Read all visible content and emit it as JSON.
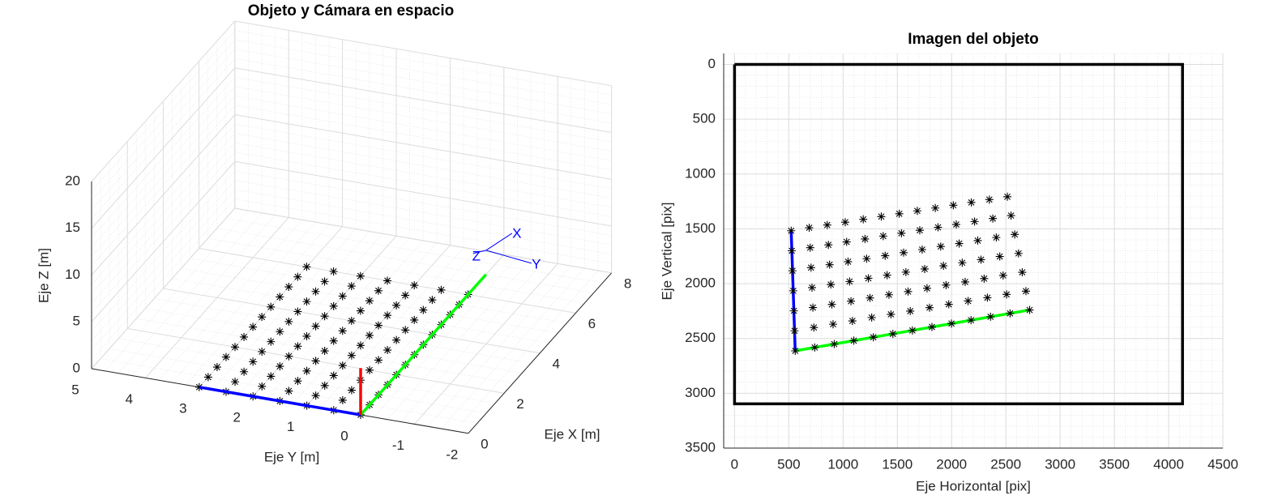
{
  "chart_data": [
    {
      "type": "scatter3d",
      "title": "Objeto y Cámara en espacio",
      "xlabel": "Eje X [m]",
      "ylabel": "Eje Y [m]",
      "zlabel": "Eje Z [m]",
      "xlim": [
        0,
        8
      ],
      "xticks": [
        0,
        2,
        4,
        6,
        8
      ],
      "ylim": [
        -2,
        5
      ],
      "yticks": [
        -2,
        -1,
        0,
        1,
        2,
        3,
        4,
        5
      ],
      "zlim": [
        0,
        20
      ],
      "zticks": [
        0,
        5,
        10,
        15,
        20
      ],
      "grid": true,
      "points": {
        "color": "#000000",
        "x": [
          0,
          0,
          0,
          0,
          0,
          0,
          0,
          0.5,
          0.5,
          0.5,
          0.5,
          0.5,
          0.5,
          0.5,
          1,
          1,
          1,
          1,
          1,
          1,
          1,
          1.5,
          1.5,
          1.5,
          1.5,
          1.5,
          1.5,
          1.5,
          2,
          2,
          2,
          2,
          2,
          2,
          2,
          2.5,
          2.5,
          2.5,
          2.5,
          2.5,
          2.5,
          2.5,
          3,
          3,
          3,
          3,
          3,
          3,
          3,
          3.5,
          3.5,
          3.5,
          3.5,
          3.5,
          3.5,
          3.5,
          4,
          4,
          4,
          4,
          4,
          4,
          4,
          4.5,
          4.5,
          4.5,
          4.5,
          4.5,
          4.5,
          4.5,
          5,
          5,
          5,
          5,
          5,
          5,
          5,
          5.5,
          5.5,
          5.5,
          5.5,
          5.5,
          5.5,
          5.5,
          6,
          6,
          6,
          6,
          6,
          6,
          6
        ],
        "y": [
          3,
          2.5,
          2,
          1.5,
          1,
          0.5,
          0,
          3,
          2.5,
          2,
          1.5,
          1,
          0.5,
          0,
          3,
          2.5,
          2,
          1.5,
          1,
          0.5,
          0,
          3,
          2.5,
          2,
          1.5,
          1,
          0.5,
          0,
          3,
          2.5,
          2,
          1.5,
          1,
          0.5,
          0,
          3,
          2.5,
          2,
          1.5,
          1,
          0.5,
          0,
          3,
          2.5,
          2,
          1.5,
          1,
          0.5,
          0,
          3,
          2.5,
          2,
          1.5,
          1,
          0.5,
          0,
          3,
          2.5,
          2,
          1.5,
          1,
          0.5,
          0,
          3,
          2.5,
          2,
          1.5,
          1,
          0.5,
          0,
          3,
          2.5,
          2,
          1.5,
          1,
          0.5,
          0,
          3,
          2.5,
          2,
          1.5,
          1,
          0.5,
          0,
          3,
          2.5,
          2,
          1.5,
          1,
          0.5,
          0
        ],
        "z": [
          0,
          0,
          0,
          0,
          0,
          0,
          0,
          0,
          0,
          0,
          0,
          0,
          0,
          0,
          0,
          0,
          0,
          0,
          0,
          0,
          0,
          0,
          0,
          0,
          0,
          0,
          0,
          0,
          0,
          0,
          0,
          0,
          0,
          0,
          0,
          0,
          0,
          0,
          0,
          0,
          0,
          0,
          0,
          0,
          0,
          0,
          0,
          0,
          0,
          0,
          0,
          0,
          0,
          0,
          0,
          0,
          0,
          0,
          0,
          0,
          0,
          0,
          0,
          0,
          0,
          0,
          0,
          0,
          0,
          0,
          0,
          0,
          0,
          0,
          0,
          0,
          0,
          0,
          0,
          0,
          0,
          0,
          0,
          0,
          0,
          0,
          0,
          0,
          0,
          0,
          0
        ]
      },
      "lines": [
        {
          "color": "#0000ff",
          "x": [
            0,
            0
          ],
          "y": [
            0,
            3
          ],
          "z": [
            0,
            0
          ]
        },
        {
          "color": "#00ff00",
          "x": [
            0,
            7
          ],
          "y": [
            0,
            0
          ],
          "z": [
            0,
            0
          ]
        },
        {
          "color": "#ff0000",
          "x": [
            0,
            0
          ],
          "y": [
            0,
            0
          ],
          "z": [
            0,
            5
          ]
        }
      ],
      "camera": {
        "x": 4,
        "y": -1,
        "z": 10,
        "color": "#0000ff",
        "axis_labels": [
          "X",
          "Y",
          "Z"
        ]
      }
    },
    {
      "type": "scatter",
      "title": "Imagen del objeto",
      "xlabel": "Eje Horizontal [pix]",
      "ylabel": "Eje Vertical [pix]",
      "xlim": [
        -100,
        4500
      ],
      "xticks": [
        0,
        500,
        1000,
        1500,
        2000,
        2500,
        3000,
        3500,
        4000,
        4500
      ],
      "ylim": [
        -100,
        3500
      ],
      "yticks": [
        0,
        500,
        1000,
        1500,
        2000,
        2500,
        3000,
        3500
      ],
      "y_reversed": true,
      "grid": true,
      "points": {
        "color": "#000000",
        "x": [
          522,
          528,
          534,
          541,
          547,
          553,
          559,
          688,
          697,
          705,
          714,
          722,
          731,
          739,
          854,
          865,
          876,
          887,
          897,
          908,
          919,
          1020,
          1033,
          1046,
          1060,
          1073,
          1086,
          1099,
          1186,
          1202,
          1217,
          1233,
          1248,
          1264,
          1279,
          1352,
          1370,
          1388,
          1406,
          1423,
          1441,
          1459,
          1518,
          1538,
          1558,
          1579,
          1599,
          1619,
          1639,
          1684,
          1707,
          1729,
          1752,
          1774,
          1797,
          1819,
          1850,
          1875,
          1900,
          1925,
          1949,
          1974,
          1999,
          2016,
          2043,
          2070,
          2098,
          2125,
          2152,
          2179,
          2182,
          2212,
          2241,
          2271,
          2300,
          2330,
          2359,
          2348,
          2380,
          2412,
          2444,
          2475,
          2507,
          2539,
          2514,
          2548,
          2582,
          2617,
          2651,
          2685,
          2719
        ],
        "y": [
          1517,
          1700,
          1882,
          2065,
          2248,
          2430,
          2613,
          1490,
          1672,
          1854,
          2036,
          2218,
          2400,
          2582,
          1465,
          1646,
          1827,
          2008,
          2189,
          2370,
          2551,
          1439,
          1619,
          1799,
          1980,
          2160,
          2340,
          2520,
          1413,
          1592,
          1772,
          1951,
          2130,
          2309,
          2489,
          1388,
          1566,
          1745,
          1923,
          2101,
          2280,
          2458,
          1362,
          1540,
          1717,
          1895,
          2072,
          2250,
          2427,
          1336,
          1513,
          1689,
          1866,
          2042,
          2219,
          2395,
          1310,
          1486,
          1661,
          1837,
          2013,
          2188,
          2364,
          1285,
          1460,
          1634,
          1809,
          1984,
          2158,
          2333,
          1259,
          1433,
          1607,
          1781,
          1954,
          2128,
          2302,
          1233,
          1406,
          1579,
          1752,
          1925,
          2098,
          2271,
          1207,
          1379,
          1551,
          1724,
          1896,
          2068,
          2240
        ]
      },
      "lines": [
        {
          "color": "#000000",
          "x": [
            0,
            4128,
            4128,
            0,
            0
          ],
          "y": [
            0,
            0,
            3096,
            3096,
            0
          ]
        },
        {
          "color": "#0000ff",
          "x": [
            522,
            559
          ],
          "y": [
            1517,
            2613
          ]
        },
        {
          "color": "#00ff00",
          "x": [
            559,
            2719
          ],
          "y": [
            2613,
            2240
          ]
        }
      ]
    }
  ]
}
